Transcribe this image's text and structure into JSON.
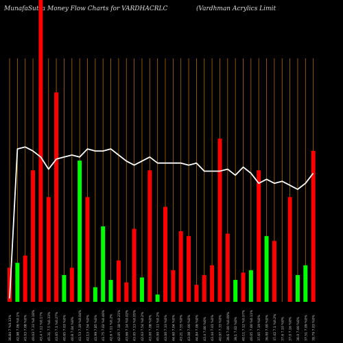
{
  "title_left": "MunafaSutra  Money Flow  Charts for VARDHACRLC",
  "title_right": "(Vardhman  Acrylics Limit",
  "colors": {
    "background": "#000000",
    "up": "#00ff00",
    "down": "#ff0000",
    "grid": "#b86a00",
    "line": "#ffffff",
    "label": "#cccccc"
  },
  "chart_data": {
    "type": "bar",
    "title": "MunafaSutra  Money Flow  Charts for VARDHACRLC",
    "grid": true,
    "ylim": [
      0,
      100
    ],
    "line_ylim": [
      0,
      100
    ],
    "categories": [
      "36.84 7 %0.13%",
      "42.98 7.06 %0.1%",
      "41.03 7.08 %0%",
      "40.03 7.33 %0.18%",
      "43.4 7.12 %0.17%",
      "45.31 7.5 %0.33%",
      "43.65 7.1 %0.27%",
      "40.65 7.03 %0%",
      "40.8 7.04 %0%",
      "41.53 7.19 %0.04%",
      "42.13 7.54 %0%",
      "41.99 7.85 %0%",
      "41.75 7.02 %0.46%",
      "42.6 7.11 %0.2%",
      "42.05 7.18 %0.21%",
      "43.66 7.14 %0.02%",
      "43.05 7.13 %0.05%",
      "42.63 7.54 %0.2%",
      "43.00 7.08 %0%",
      "45.00 7.11 %0.2%",
      "43.00 7.33 %0%",
      "44.60 7.04 %0%",
      "43.21 7.55 %0%",
      "43.08 7.00 %0%",
      "44.84 7.06 %0%",
      "43.4 7.06 %0%",
      "43.44 7.01 %0%",
      "40.97 7.33 %0%",
      "39.6 7.00 %0.09%",
      "39.1 7.02 %0%",
      "40.11 7.12 %0.07%",
      "40.05 7.00 %0.11%",
      "37.65 7.19 %0%",
      "36.00 7.00 %0%",
      "37.42 7.1 %0.2%",
      "37.6 7.10 %0%",
      "37.0 7.16 %0%",
      "36.0 7.00 %0%",
      "37.51 7.09 %0%",
      "39.79 7.03 %0%"
    ],
    "series": [
      {
        "values": [
          14,
          16,
          19,
          54,
          100,
          43,
          86,
          11,
          14,
          58,
          43,
          6,
          31,
          9,
          17,
          8,
          30,
          10,
          54,
          3,
          39,
          13,
          29,
          27,
          7,
          11,
          15,
          67,
          28,
          9,
          12,
          13,
          54,
          27,
          25,
          0,
          43,
          11,
          15,
          62
        ],
        "direction": [
          "down",
          "up",
          "down",
          "down",
          "down",
          "down",
          "down",
          "up",
          "down",
          "up",
          "down",
          "up",
          "up",
          "up",
          "down",
          "down",
          "down",
          "up",
          "down",
          "up",
          "down",
          "down",
          "down",
          "down",
          "down",
          "down",
          "down",
          "down",
          "down",
          "up",
          "down",
          "up",
          "down",
          "up",
          "down",
          "up",
          "down",
          "up",
          "up",
          "down"
        ]
      },
      {
        "name": "",
        "values": [
          1,
          75,
          76,
          74,
          71,
          65,
          70,
          71,
          72,
          71,
          75,
          74,
          74,
          75,
          72,
          69,
          67,
          69,
          71,
          68,
          68,
          68,
          68,
          67,
          68,
          64,
          64,
          64,
          65,
          62,
          66,
          63,
          58,
          60,
          58,
          59,
          57,
          55,
          58,
          63
        ]
      }
    ]
  }
}
